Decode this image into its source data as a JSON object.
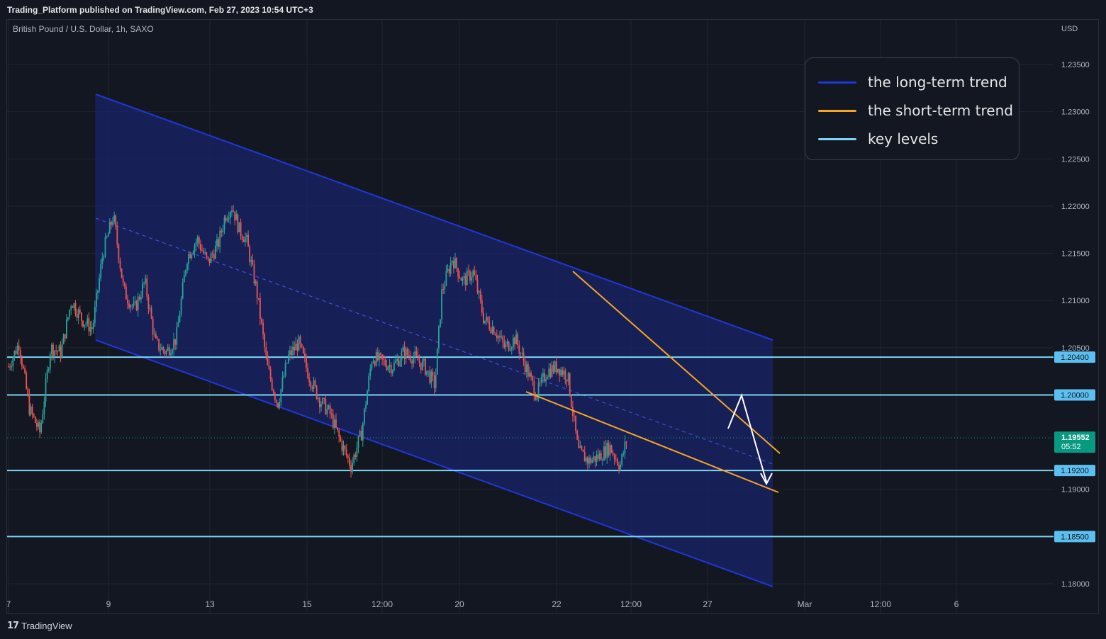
{
  "header": {
    "published": "Trading_Platform published on TradingView.com, Feb 27, 2023 10:54 UTC+3",
    "symbol": "British Pound / U.S. Dollar, 1h, SAXO"
  },
  "footer": {
    "brand": "TradingView",
    "logo_icon": "tradingview-logo-icon"
  },
  "colors": {
    "background": "#131722",
    "up_candle": "#26a69a",
    "down_candle": "#ef5350",
    "channel_fill": "#1a2468",
    "long_term_trend": "#1f36d8",
    "short_term_trend": "#f5a623",
    "key_level": "#7fd3f5",
    "price_tag": "#089981"
  },
  "legend": [
    {
      "label": "the long-term trend",
      "color": "#1f36d8"
    },
    {
      "label": "the short-term trend",
      "color": "#f5a623"
    },
    {
      "label": "key levels",
      "color": "#7fd3f5"
    }
  ],
  "chart_data": {
    "type": "candlestick",
    "instrument": "British Pound / U.S. Dollar",
    "timeframe": "1h",
    "source": "SAXO",
    "currency": "USD",
    "ylim": [
      1.178,
      1.2375
    ],
    "y_ticks": [
      "1.23500",
      "1.23000",
      "1.22500",
      "1.22000",
      "1.21500",
      "1.21000",
      "1.20500",
      "1.19000",
      "1.18000"
    ],
    "x_ticks": [
      "7",
      "9",
      "13",
      "15",
      "12:00",
      "20",
      "22",
      "12:00",
      "27",
      "Mar",
      "12:00",
      "6"
    ],
    "key_levels": [
      {
        "value": 1.204,
        "label": "1.20400"
      },
      {
        "value": 1.2,
        "label": "1.20000"
      },
      {
        "value": 1.192,
        "label": "1.19200"
      },
      {
        "value": 1.185,
        "label": "1.18500"
      }
    ],
    "last_price": {
      "value": 1.19552,
      "label": "1.19552",
      "countdown": "05:52"
    },
    "path_points": [
      [
        7.0,
        1.203
      ],
      [
        7.3,
        1.2055
      ],
      [
        7.6,
        1.1985
      ],
      [
        7.9,
        1.196
      ],
      [
        8.2,
        1.205
      ],
      [
        8.5,
        1.2045
      ],
      [
        8.8,
        1.21
      ],
      [
        9.1,
        1.208
      ],
      [
        9.4,
        1.207
      ],
      [
        9.7,
        1.215
      ],
      [
        10.0,
        1.219
      ],
      [
        10.3,
        1.211
      ],
      [
        10.6,
        1.209
      ],
      [
        10.9,
        1.212
      ],
      [
        11.2,
        1.2055
      ],
      [
        11.5,
        1.2045
      ],
      [
        11.8,
        1.206
      ],
      [
        12.1,
        1.2145
      ],
      [
        12.4,
        1.2165
      ],
      [
        12.7,
        1.214
      ],
      [
        13.0,
        1.216
      ],
      [
        13.2,
        1.219
      ],
      [
        13.4,
        1.22
      ],
      [
        13.6,
        1.2175
      ],
      [
        13.8,
        1.2165
      ],
      [
        14.1,
        1.211
      ],
      [
        14.4,
        1.203
      ],
      [
        14.7,
        1.199
      ],
      [
        15.0,
        1.204
      ],
      [
        15.3,
        1.2055
      ],
      [
        15.6,
        1.202
      ],
      [
        15.9,
        1.1995
      ],
      [
        16.2,
        1.198
      ],
      [
        16.5,
        1.195
      ],
      [
        16.8,
        1.1925
      ],
      [
        17.1,
        1.196
      ],
      [
        17.4,
        1.204
      ],
      [
        17.7,
        1.2035
      ],
      [
        18.0,
        1.203
      ],
      [
        18.3,
        1.2045
      ],
      [
        18.6,
        1.204
      ],
      [
        18.9,
        1.203
      ],
      [
        19.2,
        1.201
      ],
      [
        19.4,
        1.211
      ],
      [
        19.7,
        1.2145
      ],
      [
        20.0,
        1.212
      ],
      [
        20.3,
        1.213
      ],
      [
        20.6,
        1.208
      ],
      [
        20.9,
        1.207
      ],
      [
        21.2,
        1.205
      ],
      [
        21.5,
        1.206
      ],
      [
        21.8,
        1.203
      ],
      [
        22.1,
        1.2
      ],
      [
        22.4,
        1.2025
      ],
      [
        22.7,
        1.203
      ],
      [
        23.0,
        1.202
      ],
      [
        23.3,
        1.194
      ],
      [
        23.6,
        1.193
      ],
      [
        23.9,
        1.1935
      ],
      [
        24.2,
        1.1945
      ],
      [
        24.5,
        1.1925
      ],
      [
        24.7,
        1.1955
      ]
    ]
  }
}
